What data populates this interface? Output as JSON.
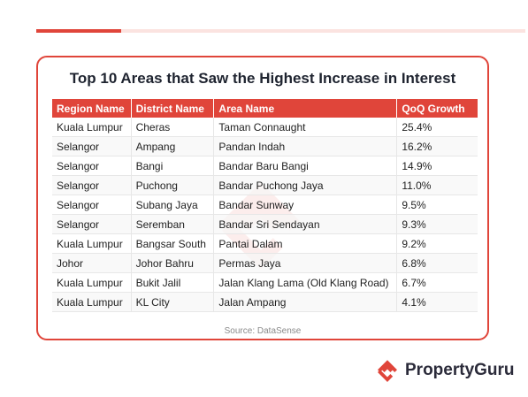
{
  "title": "Top 10 Areas that Saw the Highest Increase in Interest",
  "table": {
    "headers": [
      "Region Name",
      "District Name",
      "Area Name",
      "QoQ Growth"
    ],
    "rows": [
      [
        "Kuala Lumpur",
        "Cheras",
        "Taman Connaught",
        "25.4%"
      ],
      [
        "Selangor",
        "Ampang",
        "Pandan Indah",
        "16.2%"
      ],
      [
        "Selangor",
        "Bangi",
        "Bandar Baru Bangi",
        "14.9%"
      ],
      [
        "Selangor",
        "Puchong",
        "Bandar Puchong Jaya",
        "11.0%"
      ],
      [
        "Selangor",
        "Subang Jaya",
        "Bandar Sunway",
        "9.5%"
      ],
      [
        "Selangor",
        "Seremban",
        "Bandar Sri Sendayan",
        "9.3%"
      ],
      [
        "Kuala Lumpur",
        "Bangsar South",
        "Pantai Dalam",
        "9.2%"
      ],
      [
        "Johor",
        "Johor Bahru",
        "Permas Jaya",
        "6.8%"
      ],
      [
        "Kuala Lumpur",
        "Bukit Jalil",
        "Jalan Klang Lama (Old Klang Road)",
        "6.7%"
      ],
      [
        "Kuala Lumpur",
        "KL City",
        "Jalan Ampang",
        "4.1%"
      ]
    ]
  },
  "source": "Source: DataSense",
  "brand": {
    "name": "PropertyGuru",
    "logo_icon": "propertyguru-logo-icon",
    "accent_color": "#e0453a",
    "text_color": "#2b2b3a"
  }
}
